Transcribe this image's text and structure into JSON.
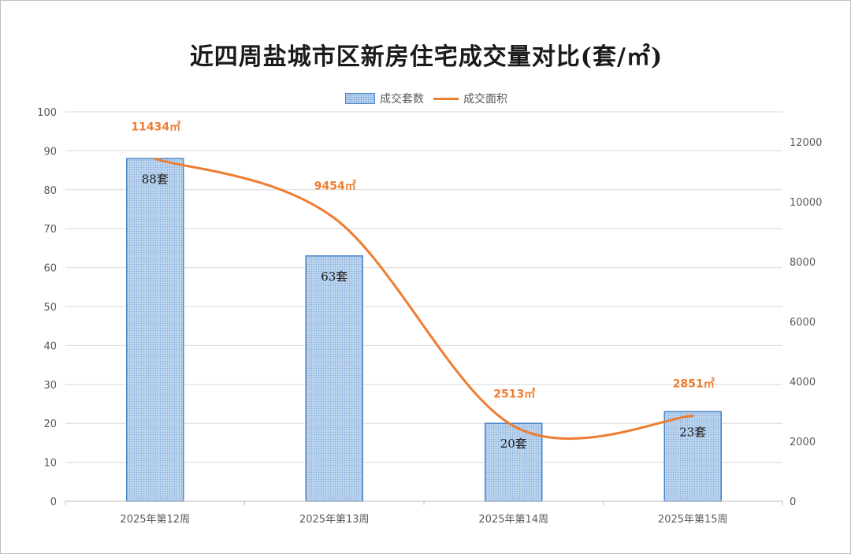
{
  "chart_data": {
    "type": "bar",
    "title": "近四周盐城市区新房住宅成交量对比(套/㎡)",
    "categories": [
      "2025年第12周",
      "2025年第13周",
      "2025年第14周",
      "2025年第15周"
    ],
    "series": [
      {
        "name": "成交套数",
        "type": "bar",
        "axis": "left",
        "values": [
          88,
          63,
          20,
          23
        ],
        "labels": [
          "88套",
          "63套",
          "20套",
          "23套"
        ],
        "color": "#bcd4ee",
        "border_color": "#4a86c8"
      },
      {
        "name": "成交面积",
        "type": "line",
        "axis": "right",
        "smooth": true,
        "values": [
          11434,
          9454,
          2513,
          2851
        ],
        "labels": [
          "11434㎡",
          "9454㎡",
          "2513㎡",
          "2851㎡"
        ],
        "color": "#ed7d31"
      }
    ],
    "y_left": {
      "min": 0,
      "max": 100,
      "ticks": [
        0,
        10,
        20,
        30,
        40,
        50,
        60,
        70,
        80,
        90,
        100
      ]
    },
    "y_right": {
      "min": 0,
      "max": 13000,
      "ticks": [
        0,
        2000,
        4000,
        6000,
        8000,
        10000,
        12000
      ]
    },
    "grid": true,
    "legend_position": "top-center"
  }
}
